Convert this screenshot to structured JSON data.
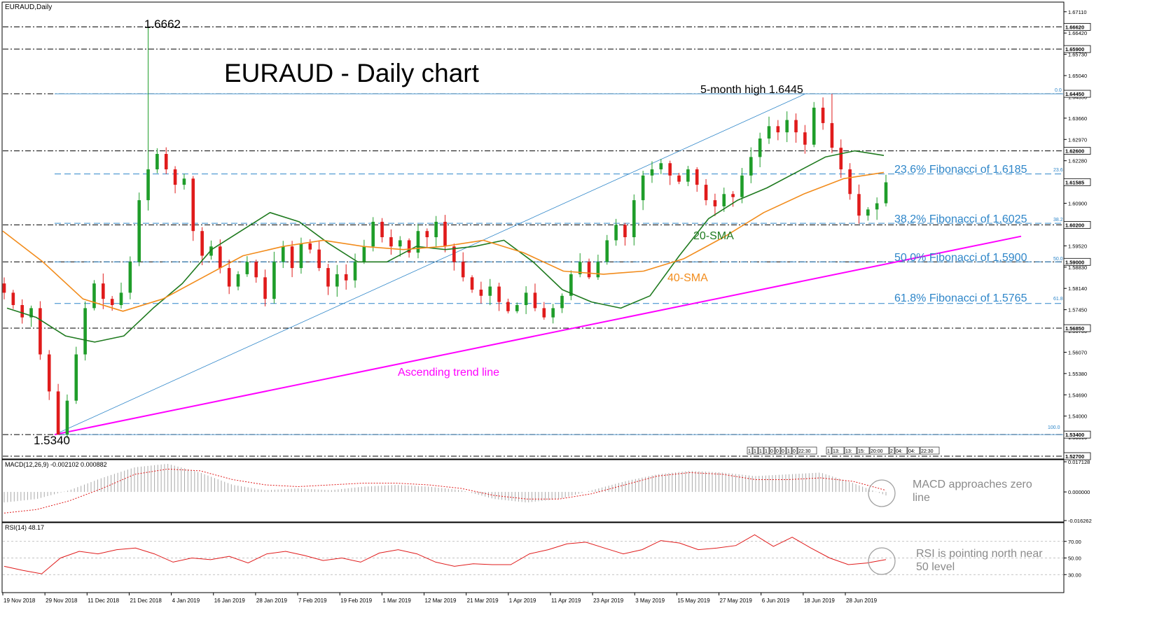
{
  "chart_data": {
    "type": "candlestick",
    "symbol_label": "EURAUD,Daily",
    "title": "EURAUD - Daily chart",
    "x_labels": [
      "19 Nov 2018",
      "29 Nov 2018",
      "11 Dec 2018",
      "21 Dec 2018",
      "4 Jan 2019",
      "16 Jan 2019",
      "28 Jan 2019",
      "7 Feb 2019",
      "19 Feb 2019",
      "1 Mar 2019",
      "12 Mar 2019",
      "21 Mar 2019",
      "1 Apr 2019",
      "11 Apr 2019",
      "23 Apr 2019",
      "3 May 2019",
      "15 May 2019",
      "27 May 2019",
      "6 Jun 2019",
      "18 Jun 2019",
      "28 Jun 2019"
    ],
    "price_ticks": [
      "1.67110",
      "1.66420",
      "1.65730",
      "1.65040",
      "1.64350",
      "1.63660",
      "1.62970",
      "1.62280",
      "1.61590",
      "1.60900",
      "1.60210",
      "1.59520",
      "1.58830",
      "1.58140",
      "1.57450",
      "1.56760",
      "1.56070",
      "1.55380",
      "1.54690",
      "1.54000",
      "1.53310"
    ],
    "price_range": [
      1.527,
      1.674
    ],
    "highlighted_levels": [
      {
        "label": "1.66620",
        "value": 1.6662
      },
      {
        "label": "1.65900",
        "value": 1.659
      },
      {
        "label": "1.64450",
        "value": 1.6445
      },
      {
        "label": "1.62600",
        "value": 1.626
      },
      {
        "label": "1.61585",
        "value": 1.61585,
        "current": true
      },
      {
        "label": "1.60200",
        "value": 1.602
      },
      {
        "label": "1.59000",
        "value": 1.59
      },
      {
        "label": "1.56850",
        "value": 1.5685
      },
      {
        "label": "1.53400",
        "value": 1.534
      },
      {
        "label": "1.52700",
        "value": 1.527
      }
    ],
    "fibonacci": [
      {
        "label": "23.6% Fibonacci of 1.6185",
        "tag": "23.6",
        "value": 1.6185
      },
      {
        "label": "38.2% Fibonacci of 1.6025",
        "tag": "38.2",
        "value": 1.6025
      },
      {
        "label": "50.0% Fibonacci of 1.5900",
        "tag": "50.0",
        "value": 1.59
      },
      {
        "label": "61.8% Fibonacci of 1.5765",
        "tag": "61.8",
        "value": 1.5765
      }
    ],
    "fib_top_tag": "0.0",
    "fib_bottom_tag": "100.0",
    "annotations": {
      "high": "1.6662",
      "low": "1.5340",
      "five_month_high": "5-month high 1.6445",
      "sma20": "20-SMA",
      "sma40": "40-SMA",
      "trend": "Ascending trend line"
    },
    "series_key_points": {
      "close": [
        1.58,
        1.576,
        1.572,
        1.575,
        1.56,
        1.548,
        1.534,
        1.545,
        1.56,
        1.575,
        1.583,
        1.578,
        1.576,
        1.58,
        1.59,
        1.61,
        1.62,
        1.625,
        1.62,
        1.615,
        1.617,
        1.6,
        1.592,
        1.595,
        1.588,
        1.582,
        1.586,
        1.59,
        1.585,
        1.578,
        1.59,
        1.595,
        1.588,
        1.596,
        1.594,
        1.588,
        1.582,
        1.586,
        1.584,
        1.59,
        1.595,
        1.603,
        1.598,
        1.595,
        1.597,
        1.593,
        1.6,
        1.598,
        1.603,
        1.595,
        1.59,
        1.585,
        1.581,
        1.579,
        1.582,
        1.577,
        1.574,
        1.576,
        1.58,
        1.575,
        1.572,
        1.575,
        1.579,
        1.586,
        1.59,
        1.585,
        1.59,
        1.597,
        1.602,
        1.598,
        1.61,
        1.618,
        1.62,
        1.622,
        1.618,
        1.616,
        1.62,
        1.615,
        1.61,
        1.608,
        1.612,
        1.611,
        1.618,
        1.624,
        1.63,
        1.634,
        1.632,
        1.636,
        1.632,
        1.628,
        1.64,
        1.635,
        1.627,
        1.62,
        1.612,
        1.605,
        1.607,
        1.609,
        1.6158
      ],
      "sma20": [
        1.575,
        1.572,
        1.566,
        1.564,
        1.566,
        1.575,
        1.583,
        1.594,
        1.6,
        1.606,
        1.603,
        1.596,
        1.59,
        1.59,
        1.595,
        1.594,
        1.595,
        1.597,
        1.59,
        1.581,
        1.577,
        1.575,
        1.579,
        1.592,
        1.604,
        1.61,
        1.614,
        1.619,
        1.624,
        1.626,
        1.6245
      ],
      "sma40": [
        1.6,
        1.59,
        1.578,
        1.574,
        1.578,
        1.585,
        1.592,
        1.595,
        1.597,
        1.595,
        1.594,
        1.595,
        1.597,
        1.593,
        1.587,
        1.586,
        1.587,
        1.591,
        1.598,
        1.606,
        1.612,
        1.617,
        1.619
      ]
    },
    "session_times": [
      "1",
      "1",
      "1",
      "1",
      "0",
      "0",
      "0",
      "1",
      "0",
      "22:30",
      "1",
      "13:",
      "13:",
      "15:",
      "20:00",
      "2",
      "04:",
      "04:",
      "22:30"
    ],
    "macd": {
      "label": "MACD(12,26,9) -0.002102 0.000882",
      "ticks": [
        "0.017128",
        "0.000000",
        "-0.016262"
      ],
      "range": [
        -0.016262,
        0.017128
      ],
      "histogram_points": [
        -0.006,
        -0.004,
        0.001,
        0.008,
        0.014,
        0.016,
        0.011,
        0.004,
        0.001,
        0.002,
        0.001,
        0.003,
        0.004,
        0.003,
        0.001,
        -0.004,
        -0.006,
        -0.004,
        0.001,
        0.006,
        0.01,
        0.012,
        0.011,
        0.009,
        0.01,
        0.011,
        0.005,
        -0.002
      ],
      "signal_points": [
        -0.012,
        -0.01,
        -0.005,
        0.002,
        0.01,
        0.013,
        0.012,
        0.007,
        0.004,
        0.003,
        0.004,
        0.005,
        0.005,
        0.004,
        0.002,
        -0.002,
        -0.004,
        -0.004,
        -0.001,
        0.004,
        0.009,
        0.011,
        0.01,
        0.007,
        0.007,
        0.008,
        0.006,
        0.0009
      ]
    },
    "rsi": {
      "label": "RSI(14) 48.17",
      "ticks": [
        "70.00",
        "50.00",
        "30.00"
      ],
      "range": [
        10,
        90
      ],
      "points": [
        40,
        35,
        31,
        50,
        58,
        55,
        60,
        62,
        55,
        45,
        50,
        48,
        52,
        44,
        55,
        58,
        53,
        47,
        50,
        45,
        56,
        60,
        55,
        45,
        40,
        43,
        42,
        42,
        55,
        60,
        67,
        69,
        62,
        55,
        60,
        71,
        68,
        60,
        62,
        65,
        78,
        64,
        75,
        62,
        50,
        42,
        44,
        48.17
      ]
    },
    "notes": {
      "macd": "MACD approaches zero line",
      "rsi": "RSI is pointing north near 50 level"
    }
  }
}
